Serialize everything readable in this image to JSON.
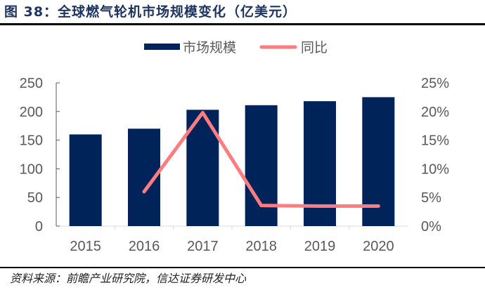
{
  "header": {
    "title": "图 38：全球燃气轮机市场规模变化（亿美元）"
  },
  "footer": {
    "source": "资料来源：前瞻产业研究院，信达证券研发中心"
  },
  "colors": {
    "bar": "#00235a",
    "line": "#ff7c80",
    "axis_text": "#595959"
  },
  "chart_data": {
    "type": "bar",
    "title": "全球燃气轮机市场规模变化（亿美元）",
    "categories": [
      "2015",
      "2016",
      "2017",
      "2018",
      "2019",
      "2020"
    ],
    "series": [
      {
        "name": "市场规模",
        "type": "bar",
        "axis": "left",
        "values": [
          160,
          170,
          203,
          211,
          218,
          225
        ]
      },
      {
        "name": "同比",
        "type": "line",
        "axis": "right",
        "values": [
          null,
          6.0,
          19.8,
          3.6,
          3.5,
          3.5
        ]
      }
    ],
    "y_left": {
      "ylim": [
        0,
        250
      ],
      "ticks": [
        "0",
        "50",
        "100",
        "150",
        "200",
        "250"
      ]
    },
    "y_right": {
      "ylim": [
        0,
        25
      ],
      "ticks": [
        "0%",
        "5%",
        "10%",
        "15%",
        "20%",
        "25%"
      ]
    },
    "legend": {
      "position": "top",
      "items": [
        "市场规模",
        "同比"
      ]
    },
    "grid": false
  }
}
